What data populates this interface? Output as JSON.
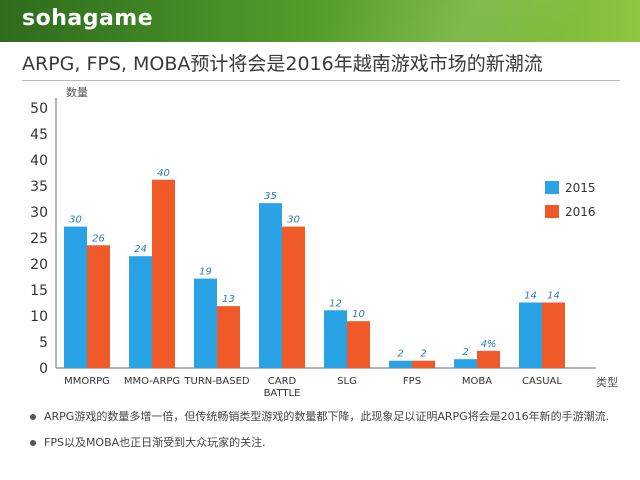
{
  "header": {
    "logo": "sohagame"
  },
  "title": "ARPG, FPS, MOBA预计将会是2016年越南游戏市场的新潮流",
  "colors": {
    "s2015": "#2aa3e6",
    "s2016": "#f05a28",
    "label": "#2a7dbf",
    "header_dark": "#2e6b1d",
    "header_light": "#8ec63f"
  },
  "chart_data": {
    "type": "bar",
    "ylabel": "数量",
    "xlabel": "类型",
    "ylim": [
      0,
      50
    ],
    "yticks": [
      0,
      5,
      10,
      15,
      20,
      25,
      30,
      35,
      40,
      45,
      50
    ],
    "categories": [
      "MMORPG",
      "MMO-ARPG",
      "TURN-BASED",
      "CARD\nBATTLE",
      "SLG",
      "FPS",
      "MOBA",
      "CASUAL"
    ],
    "series": [
      {
        "name": "2015",
        "values": [
          27.2,
          21.5,
          17.2,
          31.7,
          11.1,
          1.4,
          1.7,
          12.6
        ],
        "labels": [
          "30",
          "24",
          "19",
          "35",
          "12",
          "2",
          "2",
          "14"
        ]
      },
      {
        "name": "2016",
        "values": [
          23.6,
          36.2,
          11.9,
          27.2,
          9.0,
          1.4,
          3.3,
          12.6
        ],
        "labels": [
          "26",
          "40",
          "13",
          "30",
          "10",
          "2",
          "4%",
          "14"
        ]
      }
    ],
    "legend": "right",
    "grid": false
  },
  "notes": [
    "ARPG游戏的数量多增一倍，但传统畅销类型游戏的数量都下降，此现象足以证明ARPG将会是2016年新的手游潮流.",
    "FPS以及MOBA也正日渐受到大众玩家的关注."
  ]
}
